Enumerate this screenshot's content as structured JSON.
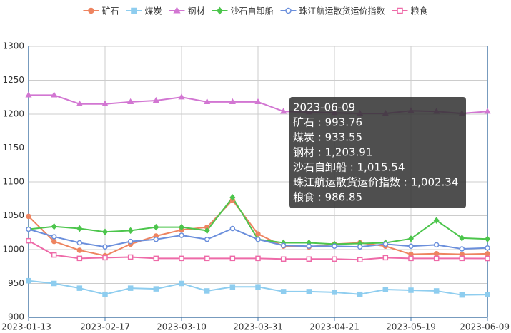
{
  "chart_data": {
    "type": "line",
    "categories": [
      "2023-01-13",
      null,
      null,
      "2023-02-17",
      null,
      null,
      "2023-03-10",
      null,
      null,
      "2023-03-31",
      null,
      null,
      "2023-04-21",
      null,
      null,
      "2023-05-19",
      null,
      null,
      "2023-06-09"
    ],
    "series": [
      {
        "name": "矿石",
        "color": "#ee8460",
        "marker": "circle",
        "values": [
          1049,
          1012,
          999,
          991,
          1008,
          1020,
          1029,
          1033,
          1073,
          1023,
          1005,
          1004,
          1008,
          1010,
          1005,
          993,
          994,
          993,
          993.76
        ]
      },
      {
        "name": "煤炭",
        "color": "#8ecdef",
        "marker": "square",
        "values": [
          954,
          950,
          943,
          934,
          943,
          942,
          950,
          939,
          945,
          945,
          938,
          938,
          937,
          934,
          941,
          940,
          939,
          933,
          933.55
        ]
      },
      {
        "name": "钢材",
        "color": "#d276d2",
        "marker": "triangle",
        "values": [
          1228,
          1228,
          1215,
          1215,
          1218,
          1220,
          1225,
          1218,
          1218,
          1218,
          1204,
          1203,
          1202,
          1201,
          1201,
          1205,
          1204,
          1201,
          1203.91
        ]
      },
      {
        "name": "沙石自卸船",
        "color": "#4cc54c",
        "marker": "diamond",
        "values": [
          1030,
          1034,
          1031,
          1026,
          1028,
          1033,
          1033,
          1028,
          1077,
          1015,
          1010,
          1010,
          1008,
          1009,
          1010,
          1016,
          1043,
          1017,
          1015.54
        ]
      },
      {
        "name": "珠江航运散货运价指数",
        "color": "#6b8fdc",
        "marker": "circle-open",
        "values": [
          1030,
          1019,
          1010,
          1004,
          1012,
          1015,
          1021,
          1015,
          1031,
          1015,
          1006,
          1005,
          1005,
          1004,
          1008,
          1005,
          1007,
          1001,
          1002.34
        ]
      },
      {
        "name": "粮食",
        "color": "#ee6aa8",
        "marker": "square-open",
        "values": [
          1013,
          992,
          987,
          988,
          989,
          987,
          987,
          987,
          987,
          987,
          986,
          986,
          986,
          985,
          988,
          987,
          987,
          987,
          986.85
        ]
      }
    ],
    "ylim": [
      900,
      1300
    ],
    "yticks": [
      900,
      950,
      1000,
      1050,
      1100,
      1150,
      1200,
      1250,
      1300
    ],
    "grid": true,
    "legend": "top",
    "tooltip": {
      "title": "2023-06-09",
      "lines": [
        "矿石 : 993.76",
        "煤炭 : 933.55",
        "钢材 : 1,203.91",
        "沙石自卸船 : 1,015.54",
        "珠江航运散货运价指数 : 1,002.34",
        "粮食 : 986.85"
      ]
    }
  }
}
